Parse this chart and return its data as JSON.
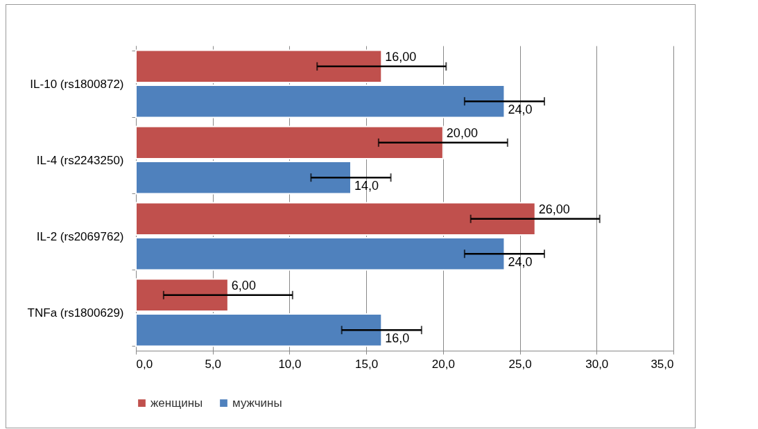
{
  "chart_data": {
    "type": "bar",
    "orientation": "horizontal",
    "categories": [
      "IL-10 (rs1800872)",
      "IL-4  (rs2243250)",
      "IL-2  (rs2069762)",
      "TNFa (rs1800629)"
    ],
    "series": [
      {
        "name": "женщины",
        "color": "#c0504d",
        "values": [
          16,
          20,
          26,
          6
        ],
        "errors": [
          [
            11.8,
            20.2
          ],
          [
            15.8,
            24.2
          ],
          [
            21.8,
            30.2
          ],
          [
            1.8,
            10.2
          ]
        ],
        "value_labels": [
          "16,00",
          "20,00",
          "26,00",
          "6,00"
        ]
      },
      {
        "name": "мужчины",
        "color": "#4f81bd",
        "values": [
          24,
          14,
          24,
          16
        ],
        "errors": [
          [
            21.4,
            26.6
          ],
          [
            11.4,
            16.6
          ],
          [
            21.4,
            26.6
          ],
          [
            13.4,
            18.6
          ]
        ],
        "value_labels": [
          "24,0",
          "14,0",
          "24,0",
          "16,0"
        ]
      }
    ],
    "xlim": [
      0,
      35
    ],
    "xticks": [
      {
        "value": 0,
        "label": "0,0"
      },
      {
        "value": 5,
        "label": "5,0"
      },
      {
        "value": 10,
        "label": "10,0"
      },
      {
        "value": 15,
        "label": "15,0"
      },
      {
        "value": 20,
        "label": "20,0"
      },
      {
        "value": 25,
        "label": "25,0"
      },
      {
        "value": 30,
        "label": "30,0"
      },
      {
        "value": 35,
        "label": "35,0"
      }
    ],
    "grid": "x",
    "legend": "bottom"
  }
}
